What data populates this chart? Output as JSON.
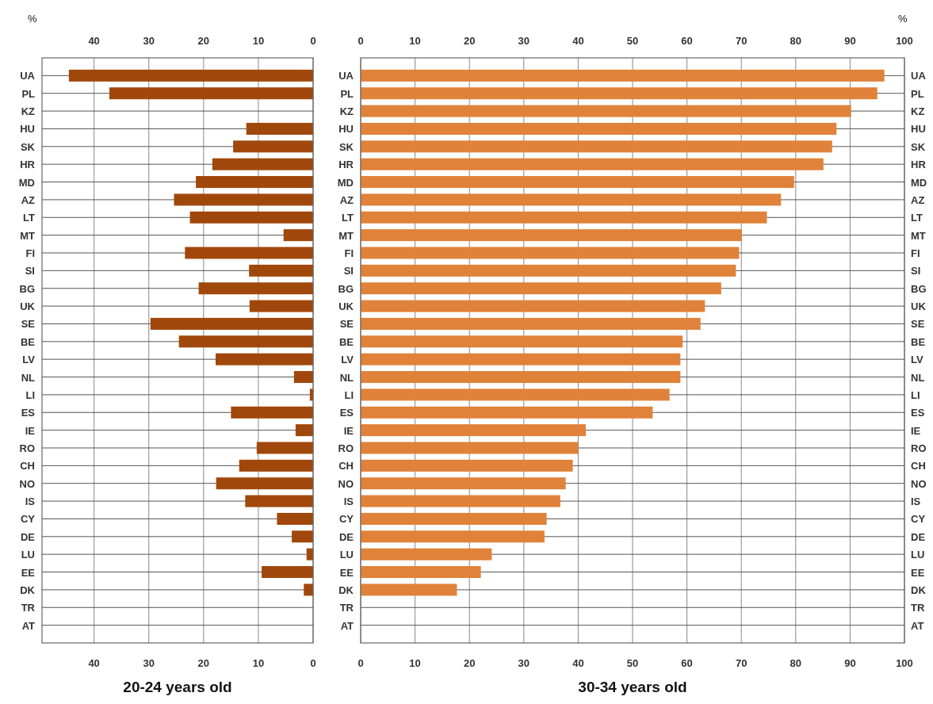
{
  "chart_data": [
    {
      "type": "bar",
      "orientation": "horizontal",
      "title": "20-24 years old",
      "xlabel": "%",
      "grid": true,
      "categories": [
        "UA",
        "PL",
        "KZ",
        "HU",
        "SK",
        "HR",
        "MD",
        "AZ",
        "LT",
        "MT",
        "FI",
        "SI",
        "BG",
        "UK",
        "SE",
        "BE",
        "LV",
        "NL",
        "LI",
        "ES",
        "IE",
        "RO",
        "CH",
        "NO",
        "IS",
        "CY",
        "DE",
        "LU",
        "EE",
        "DK",
        "TR",
        "AT"
      ],
      "series": [
        {
          "color": "#a0480c",
          "values": [
            44.6,
            37.2,
            null,
            12.2,
            14.6,
            18.4,
            21.4,
            25.4,
            22.5,
            5.4,
            23.4,
            11.7,
            20.9,
            11.6,
            29.7,
            24.5,
            17.8,
            3.5,
            0.6,
            15.0,
            3.2,
            10.3,
            13.5,
            17.7,
            12.4,
            6.6,
            3.9,
            1.2,
            9.4,
            1.7,
            null,
            null
          ]
        }
      ],
      "xlim": [
        49.5,
        0
      ],
      "xticks": [
        40,
        30,
        20,
        10,
        0
      ],
      "x2lim": [
        49.5,
        0
      ],
      "x2ticks": [
        40,
        30,
        20,
        10,
        0
      ]
    },
    {
      "type": "bar",
      "orientation": "horizontal",
      "title": "30-34 years old",
      "xlabel": "%",
      "grid": true,
      "categories": [
        "UA",
        "PL",
        "KZ",
        "HU",
        "SK",
        "HR",
        "MD",
        "AZ",
        "LT",
        "MT",
        "FI",
        "SI",
        "BG",
        "UK",
        "SE",
        "BE",
        "LV",
        "NL",
        "LI",
        "ES",
        "IE",
        "RO",
        "CH",
        "NO",
        "IS",
        "CY",
        "DE",
        "LU",
        "EE",
        "DK",
        "TR",
        "AT"
      ],
      "y2_categories": [
        "UA",
        "PL",
        "KZ",
        "HU",
        "SK",
        "HR",
        "MD",
        "AZ",
        "LT",
        "MT",
        "FI",
        "SI",
        "BG",
        "UK",
        "SE",
        "BE",
        "LV",
        "NL",
        "LI",
        "ES",
        "IE",
        "RO",
        "CH",
        "NO",
        "IS",
        "CY",
        "DE",
        "LU",
        "EE",
        "DK",
        "TR",
        "AT"
      ],
      "series": [
        {
          "color": "#e0823a",
          "values": [
            96.3,
            95.0,
            90.2,
            87.5,
            86.7,
            85.1,
            79.7,
            77.3,
            74.7,
            70.1,
            69.6,
            69.0,
            66.3,
            63.3,
            62.5,
            59.2,
            58.8,
            58.8,
            56.8,
            53.7,
            41.4,
            40.0,
            39.0,
            37.7,
            36.7,
            34.2,
            33.8,
            24.1,
            22.1,
            17.7,
            null,
            null
          ]
        }
      ],
      "xlim": [
        0,
        100
      ],
      "xticks": [
        0,
        10,
        20,
        30,
        40,
        50,
        60,
        70,
        80,
        90,
        100
      ],
      "x2lim": [
        0,
        100
      ],
      "x2ticks": [
        0,
        10,
        20,
        30,
        40,
        50,
        60,
        70,
        80,
        90,
        100
      ]
    }
  ]
}
